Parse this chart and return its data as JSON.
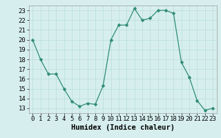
{
  "x": [
    0,
    1,
    2,
    3,
    4,
    5,
    6,
    7,
    8,
    9,
    10,
    11,
    12,
    13,
    14,
    15,
    16,
    17,
    18,
    19,
    20,
    21,
    22,
    23
  ],
  "y": [
    20.0,
    18.0,
    16.5,
    16.5,
    15.0,
    13.7,
    13.2,
    13.5,
    13.4,
    15.3,
    20.0,
    21.5,
    21.5,
    23.2,
    22.0,
    22.2,
    23.0,
    23.0,
    22.7,
    17.7,
    16.2,
    13.8,
    12.8,
    13.0
  ],
  "line_color": "#2e8b72",
  "marker": "D",
  "marker_size": 2.5,
  "bg_color": "#d6efee",
  "grid_color": "#b8dcd9",
  "xlabel": "Humidex (Indice chaleur)",
  "xlim": [
    -0.5,
    23.5
  ],
  "ylim": [
    12.5,
    23.5
  ],
  "yticks": [
    13,
    14,
    15,
    16,
    17,
    18,
    19,
    20,
    21,
    22,
    23
  ],
  "xticks": [
    0,
    1,
    2,
    3,
    4,
    5,
    6,
    7,
    8,
    9,
    10,
    11,
    12,
    13,
    14,
    15,
    16,
    17,
    18,
    19,
    20,
    21,
    22,
    23
  ],
  "tick_fontsize": 6.5,
  "label_fontsize": 7.5,
  "spine_color": "#999999"
}
